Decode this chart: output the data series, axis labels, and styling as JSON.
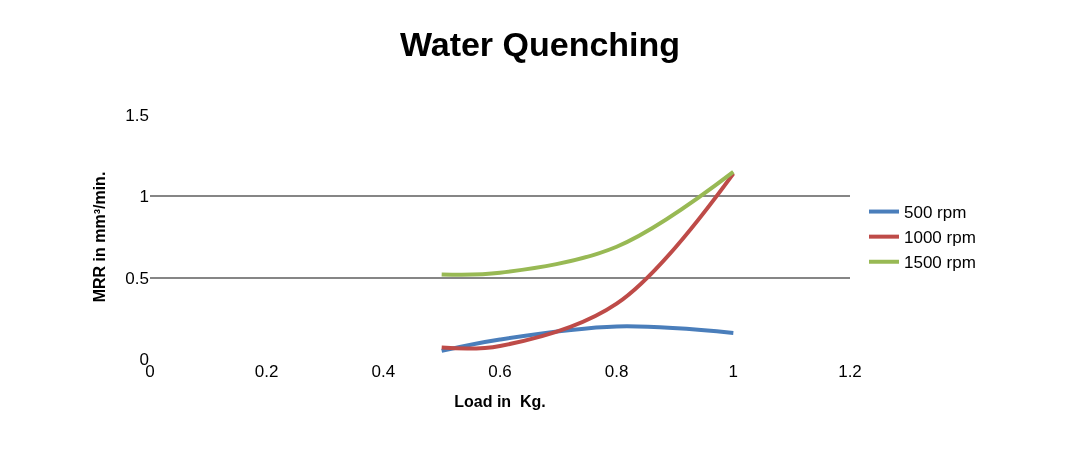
{
  "chart_data": {
    "type": "line",
    "title": "Water Quenching",
    "xlabel": "Load in  Kg.",
    "ylabel": "MRR in mm³/min.",
    "x": [
      0.5,
      0.6,
      0.8,
      1
    ],
    "series": [
      {
        "name": "500 rpm",
        "color": "#4a7ebb",
        "values": [
          0.05,
          0.12,
          0.2,
          0.16
        ]
      },
      {
        "name": "1000 rpm",
        "color": "#be4b48",
        "values": [
          0.07,
          0.08,
          0.34,
          1.14
        ]
      },
      {
        "name": "1500 rpm",
        "color": "#98b954",
        "values": [
          0.52,
          0.53,
          0.69,
          1.15
        ]
      }
    ],
    "xlim": [
      0,
      1.2
    ],
    "xticks": [
      0,
      0.2,
      0.4,
      0.6,
      0.8,
      1,
      1.2
    ],
    "ylim": [
      0,
      1.5
    ],
    "yticks": [
      0,
      0.5,
      1,
      1.5
    ],
    "grid": "y",
    "legend": "right",
    "marker": "none",
    "line_style": "solid"
  }
}
